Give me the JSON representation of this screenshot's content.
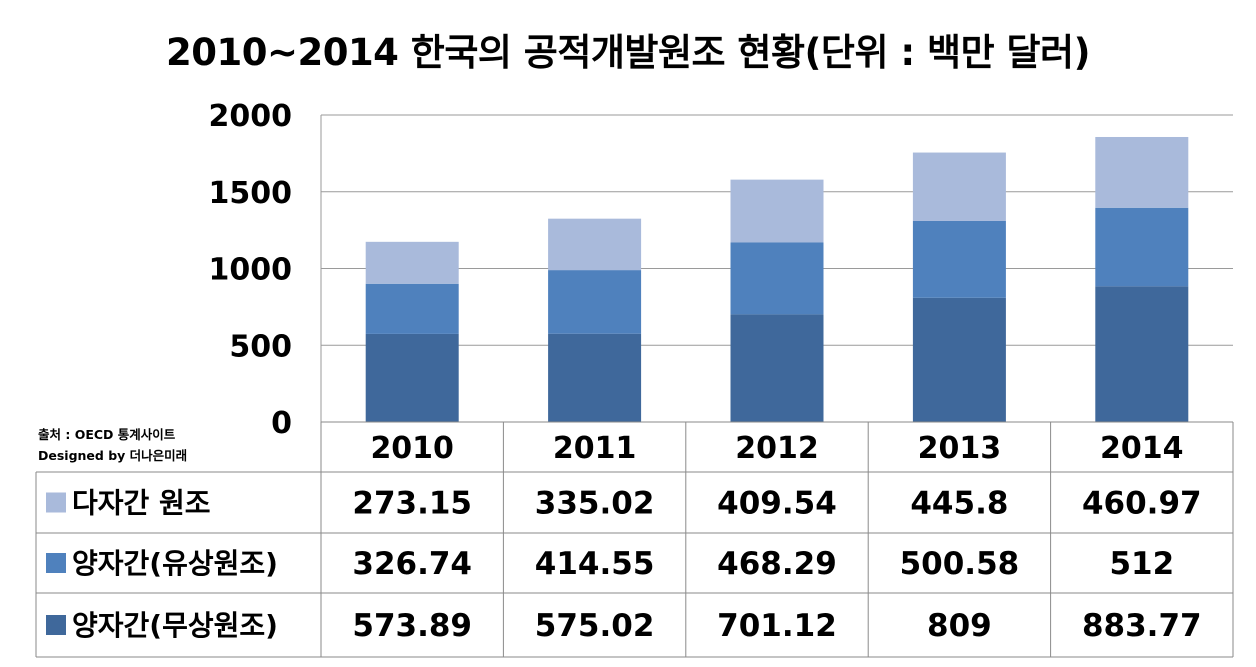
{
  "title": "2010~2014 한국의 공적개발원조 현황(단위 : 백만 달러)",
  "source": "출처 : OECD 통계사이트",
  "designer": "Designed by 더나은미래",
  "chart_data": {
    "type": "bar",
    "stacked": true,
    "categories": [
      "2010",
      "2011",
      "2012",
      "2013",
      "2014"
    ],
    "series": [
      {
        "name": "양자간(무상원조)",
        "values": [
          573.89,
          575.02,
          701.12,
          809,
          883.77
        ],
        "labels": [
          "573.89",
          "575.02",
          "701.12",
          "809",
          "883.77"
        ],
        "color": "#3f689b"
      },
      {
        "name": "양자간(유상원조)",
        "values": [
          326.74,
          414.55,
          468.29,
          500.58,
          512
        ],
        "labels": [
          "326.74",
          "414.55",
          "468.29",
          "500.58",
          "512"
        ],
        "color": "#4f81bd"
      },
      {
        "name": "다자간 원조",
        "values": [
          273.15,
          335.02,
          409.54,
          445.8,
          460.97
        ],
        "labels": [
          "273.15",
          "335.02",
          "409.54",
          "445.8",
          "460.97"
        ],
        "color": "#a9badb"
      }
    ],
    "table_order": [
      2,
      1,
      0
    ],
    "ylim": [
      0,
      2000
    ],
    "yticks": [
      "0",
      "500",
      "1000",
      "1500",
      "2000"
    ],
    "grid": true,
    "legend": "data-table"
  }
}
